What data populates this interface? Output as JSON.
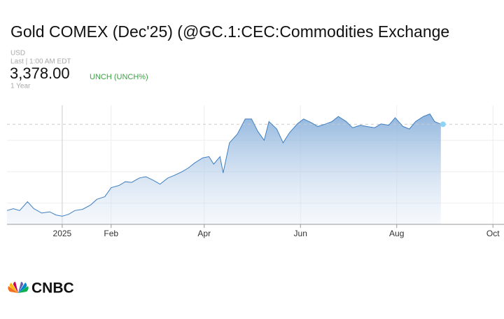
{
  "header": {
    "title": "Gold COMEX (Dec'25) (@GC.1:CEC:Commodities Exchange",
    "currency": "USD",
    "last": "Last | 1:00 AM EDT",
    "price": "3,378.00",
    "change": "UNCH (UNCH%)",
    "period": "1 Year"
  },
  "chart_data": {
    "type": "line",
    "x": [
      -35,
      -31,
      -27,
      -22,
      -18,
      -13,
      -8,
      -4,
      0,
      4,
      8,
      13,
      18,
      22,
      27,
      31,
      36,
      40,
      44,
      49,
      53,
      58,
      62,
      67,
      71,
      76,
      80,
      84,
      89,
      93,
      96,
      100,
      102,
      106,
      111,
      116,
      120,
      124,
      128,
      131,
      136,
      140,
      144,
      149,
      153,
      158,
      162,
      167,
      171,
      175,
      180,
      184,
      189,
      193,
      198,
      202,
      207,
      211,
      216,
      220,
      224,
      229,
      233,
      236,
      240
    ],
    "values": [
      2690,
      2705,
      2690,
      2760,
      2705,
      2670,
      2680,
      2655,
      2645,
      2660,
      2690,
      2700,
      2735,
      2780,
      2800,
      2872,
      2890,
      2920,
      2915,
      2950,
      2960,
      2930,
      2900,
      2950,
      2970,
      3000,
      3030,
      3070,
      3110,
      3120,
      3060,
      3120,
      2990,
      3230,
      3300,
      3420,
      3420,
      3320,
      3250,
      3400,
      3340,
      3230,
      3310,
      3380,
      3420,
      3390,
      3360,
      3380,
      3400,
      3440,
      3400,
      3350,
      3370,
      3360,
      3350,
      3380,
      3370,
      3430,
      3360,
      3340,
      3400,
      3440,
      3460,
      3400,
      3378
    ],
    "color": "#3f7fc1",
    "reference_line": 3378,
    "xlim": [
      -35,
      280
    ],
    "xticks": [
      {
        "value": 0,
        "label": "2025"
      },
      {
        "value": 31,
        "label": "Feb"
      },
      {
        "value": 90,
        "label": "Apr"
      },
      {
        "value": 151,
        "label": "Jun"
      },
      {
        "value": 212,
        "label": "Aug"
      },
      {
        "value": 273,
        "label": "Oct"
      }
    ],
    "ylim": [
      2580,
      3530
    ],
    "yticks": [
      2750,
      3000,
      3250
    ],
    "grid": true
  },
  "logo": "CNBC"
}
